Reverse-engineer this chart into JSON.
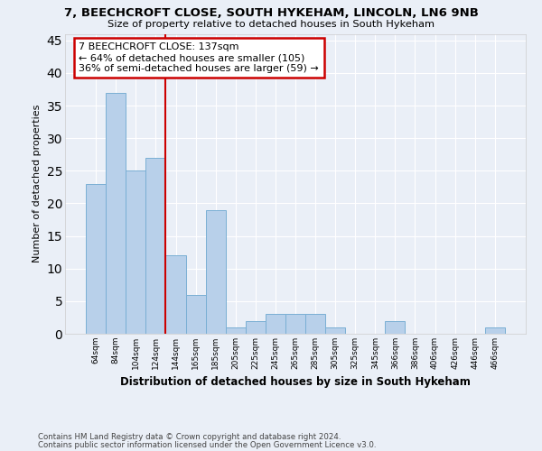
{
  "title1": "7, BEECHCROFT CLOSE, SOUTH HYKEHAM, LINCOLN, LN6 9NB",
  "title2": "Size of property relative to detached houses in South Hykeham",
  "xlabel": "Distribution of detached houses by size in South Hykeham",
  "ylabel": "Number of detached properties",
  "footer1": "Contains HM Land Registry data © Crown copyright and database right 2024.",
  "footer2": "Contains public sector information licensed under the Open Government Licence v3.0.",
  "bin_labels": [
    "64sqm",
    "84sqm",
    "104sqm",
    "124sqm",
    "144sqm",
    "165sqm",
    "185sqm",
    "205sqm",
    "225sqm",
    "245sqm",
    "265sqm",
    "285sqm",
    "305sqm",
    "325sqm",
    "345sqm",
    "366sqm",
    "386sqm",
    "406sqm",
    "426sqm",
    "446sqm",
    "466sqm"
  ],
  "bar_values": [
    23,
    37,
    25,
    27,
    12,
    6,
    19,
    1,
    2,
    3,
    3,
    3,
    1,
    0,
    0,
    2,
    0,
    0,
    0,
    0,
    1
  ],
  "bar_color": "#b8d0ea",
  "bar_edge_color": "#7aafd4",
  "bg_color": "#eaeff7",
  "grid_color": "#ffffff",
  "vline_color": "#cc0000",
  "annotation_text": "7 BEECHCROFT CLOSE: 137sqm\n← 64% of detached houses are smaller (105)\n36% of semi-detached houses are larger (59) →",
  "annotation_box_color": "white",
  "annotation_box_edge": "#cc0000",
  "ylim": [
    0,
    46
  ],
  "yticks": [
    0,
    5,
    10,
    15,
    20,
    25,
    30,
    35,
    40,
    45
  ]
}
